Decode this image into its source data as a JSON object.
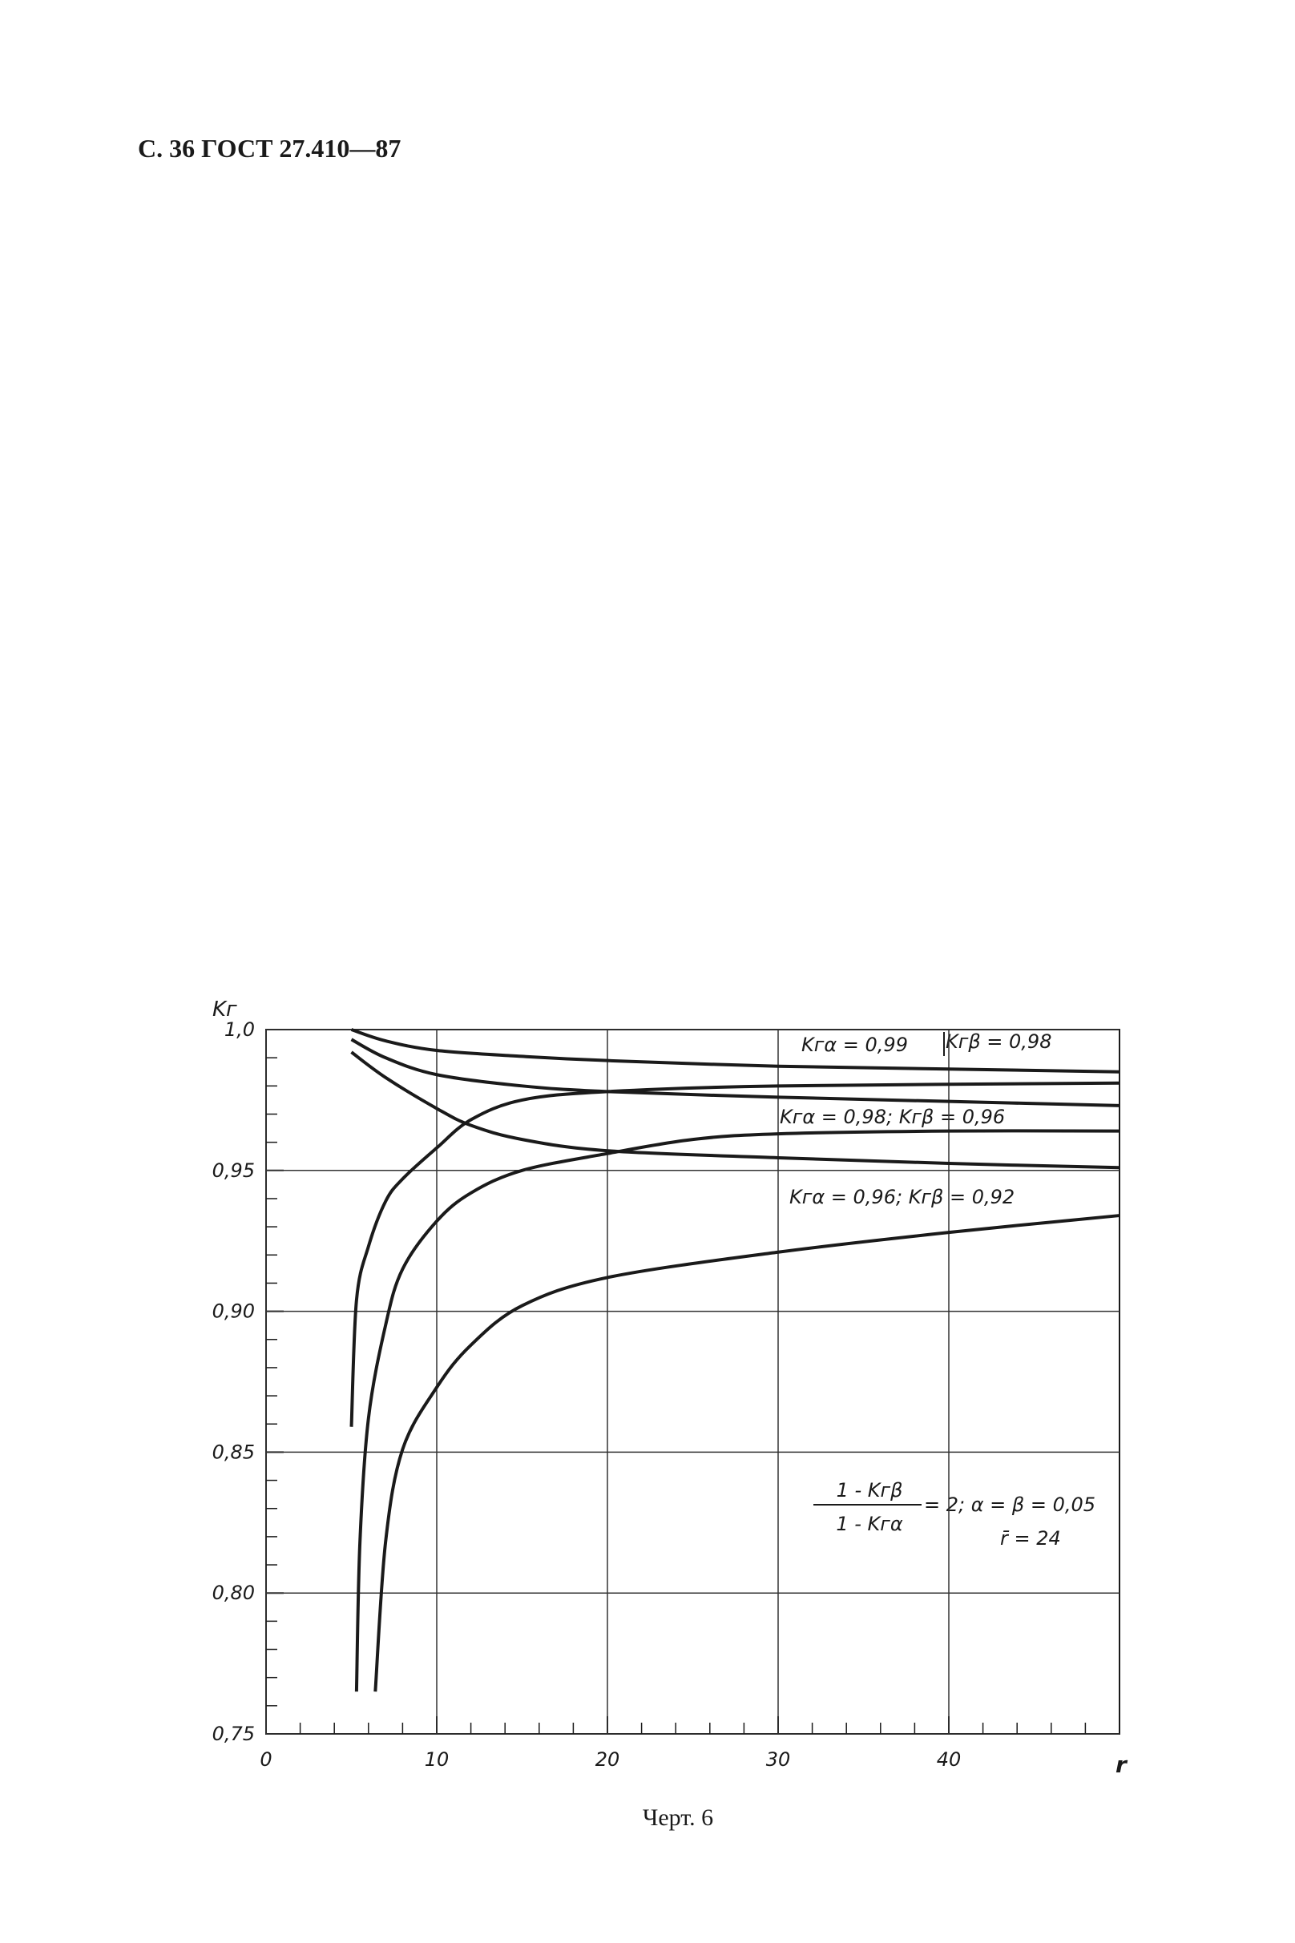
{
  "header": "С. 36 ГОСТ 27.410—87",
  "caption": "Черт. 6",
  "chart_data": {
    "type": "line",
    "y_label": "Kг",
    "x_label": "r",
    "xlim": [
      0,
      50
    ],
    "ylim": [
      0.75,
      1.0
    ],
    "xticks": [
      0,
      10,
      20,
      30,
      40
    ],
    "yticks": [
      {
        "value": 0.75,
        "label": "0,75"
      },
      {
        "value": 0.8,
        "label": "0,80"
      },
      {
        "value": 0.85,
        "label": "0,85"
      },
      {
        "value": 0.9,
        "label": "0,90"
      },
      {
        "value": 0.95,
        "label": "0,95"
      },
      {
        "value": 1.0,
        "label": "1,0"
      }
    ],
    "xminor": [
      2,
      4,
      6,
      8,
      12,
      14,
      16,
      18,
      22,
      24,
      26,
      28,
      32,
      34,
      36,
      38,
      42,
      44,
      46,
      48
    ],
    "yminor": [
      0.76,
      0.77,
      0.78,
      0.79,
      0.81,
      0.82,
      0.83,
      0.84,
      0.86,
      0.87,
      0.88,
      0.89,
      0.91,
      0.92,
      0.93,
      0.94,
      0.96,
      0.97,
      0.98,
      0.99
    ],
    "grid": true,
    "series": [
      {
        "color": "#1a1a1a",
        "x": [
          5,
          7,
          10,
          15,
          20,
          30,
          40,
          50
        ],
        "values": [
          1.0,
          0.996,
          0.9926,
          0.9905,
          0.989,
          0.987,
          0.986,
          0.985
        ]
      },
      {
        "color": "#1a1a1a",
        "x": [
          5,
          7,
          10,
          15,
          20,
          30,
          40,
          50
        ],
        "values": [
          0.9965,
          0.99,
          0.984,
          0.98,
          0.978,
          0.976,
          0.9745,
          0.973
        ]
      },
      {
        "color": "#1a1a1a",
        "x": [
          5,
          7,
          10,
          12,
          15,
          20,
          30,
          40,
          50
        ],
        "values": [
          0.992,
          0.983,
          0.972,
          0.966,
          0.961,
          0.957,
          0.9545,
          0.9525,
          0.951
        ]
      },
      {
        "color": "#1a1a1a",
        "x": [
          5,
          5.3,
          6,
          7,
          8,
          10,
          12,
          15,
          20,
          30,
          50
        ],
        "values": [
          0.859,
          0.904,
          0.923,
          0.939,
          0.947,
          0.958,
          0.968,
          0.975,
          0.978,
          0.98,
          0.981
        ]
      },
      {
        "color": "#1a1a1a",
        "x": [
          5.3,
          5.5,
          6,
          7,
          8,
          10,
          12,
          15,
          20,
          25,
          30,
          40,
          50
        ],
        "values": [
          0.765,
          0.818,
          0.862,
          0.895,
          0.915,
          0.932,
          0.942,
          0.95,
          0.956,
          0.961,
          0.963,
          0.964,
          0.964
        ]
      },
      {
        "color": "#1a1a1a",
        "x": [
          6.4,
          7,
          8,
          10,
          12,
          15,
          20,
          30,
          40,
          50
        ],
        "values": [
          0.765,
          0.818,
          0.851,
          0.873,
          0.888,
          0.902,
          0.912,
          0.921,
          0.928,
          0.934
        ]
      }
    ],
    "annotations": [
      "Kгα = 0,99",
      "Kгβ = 0,98",
      "Kгα = 0,98;  Kгβ = 0,96",
      "Kгα = 0,96;  Kгβ = 0,92"
    ],
    "formula": {
      "numerator": "1 - Kгβ",
      "denominator": "1 - Kгα",
      "rest": "= 2;  α = β = 0,05",
      "mean": "r̄ = 24"
    }
  }
}
